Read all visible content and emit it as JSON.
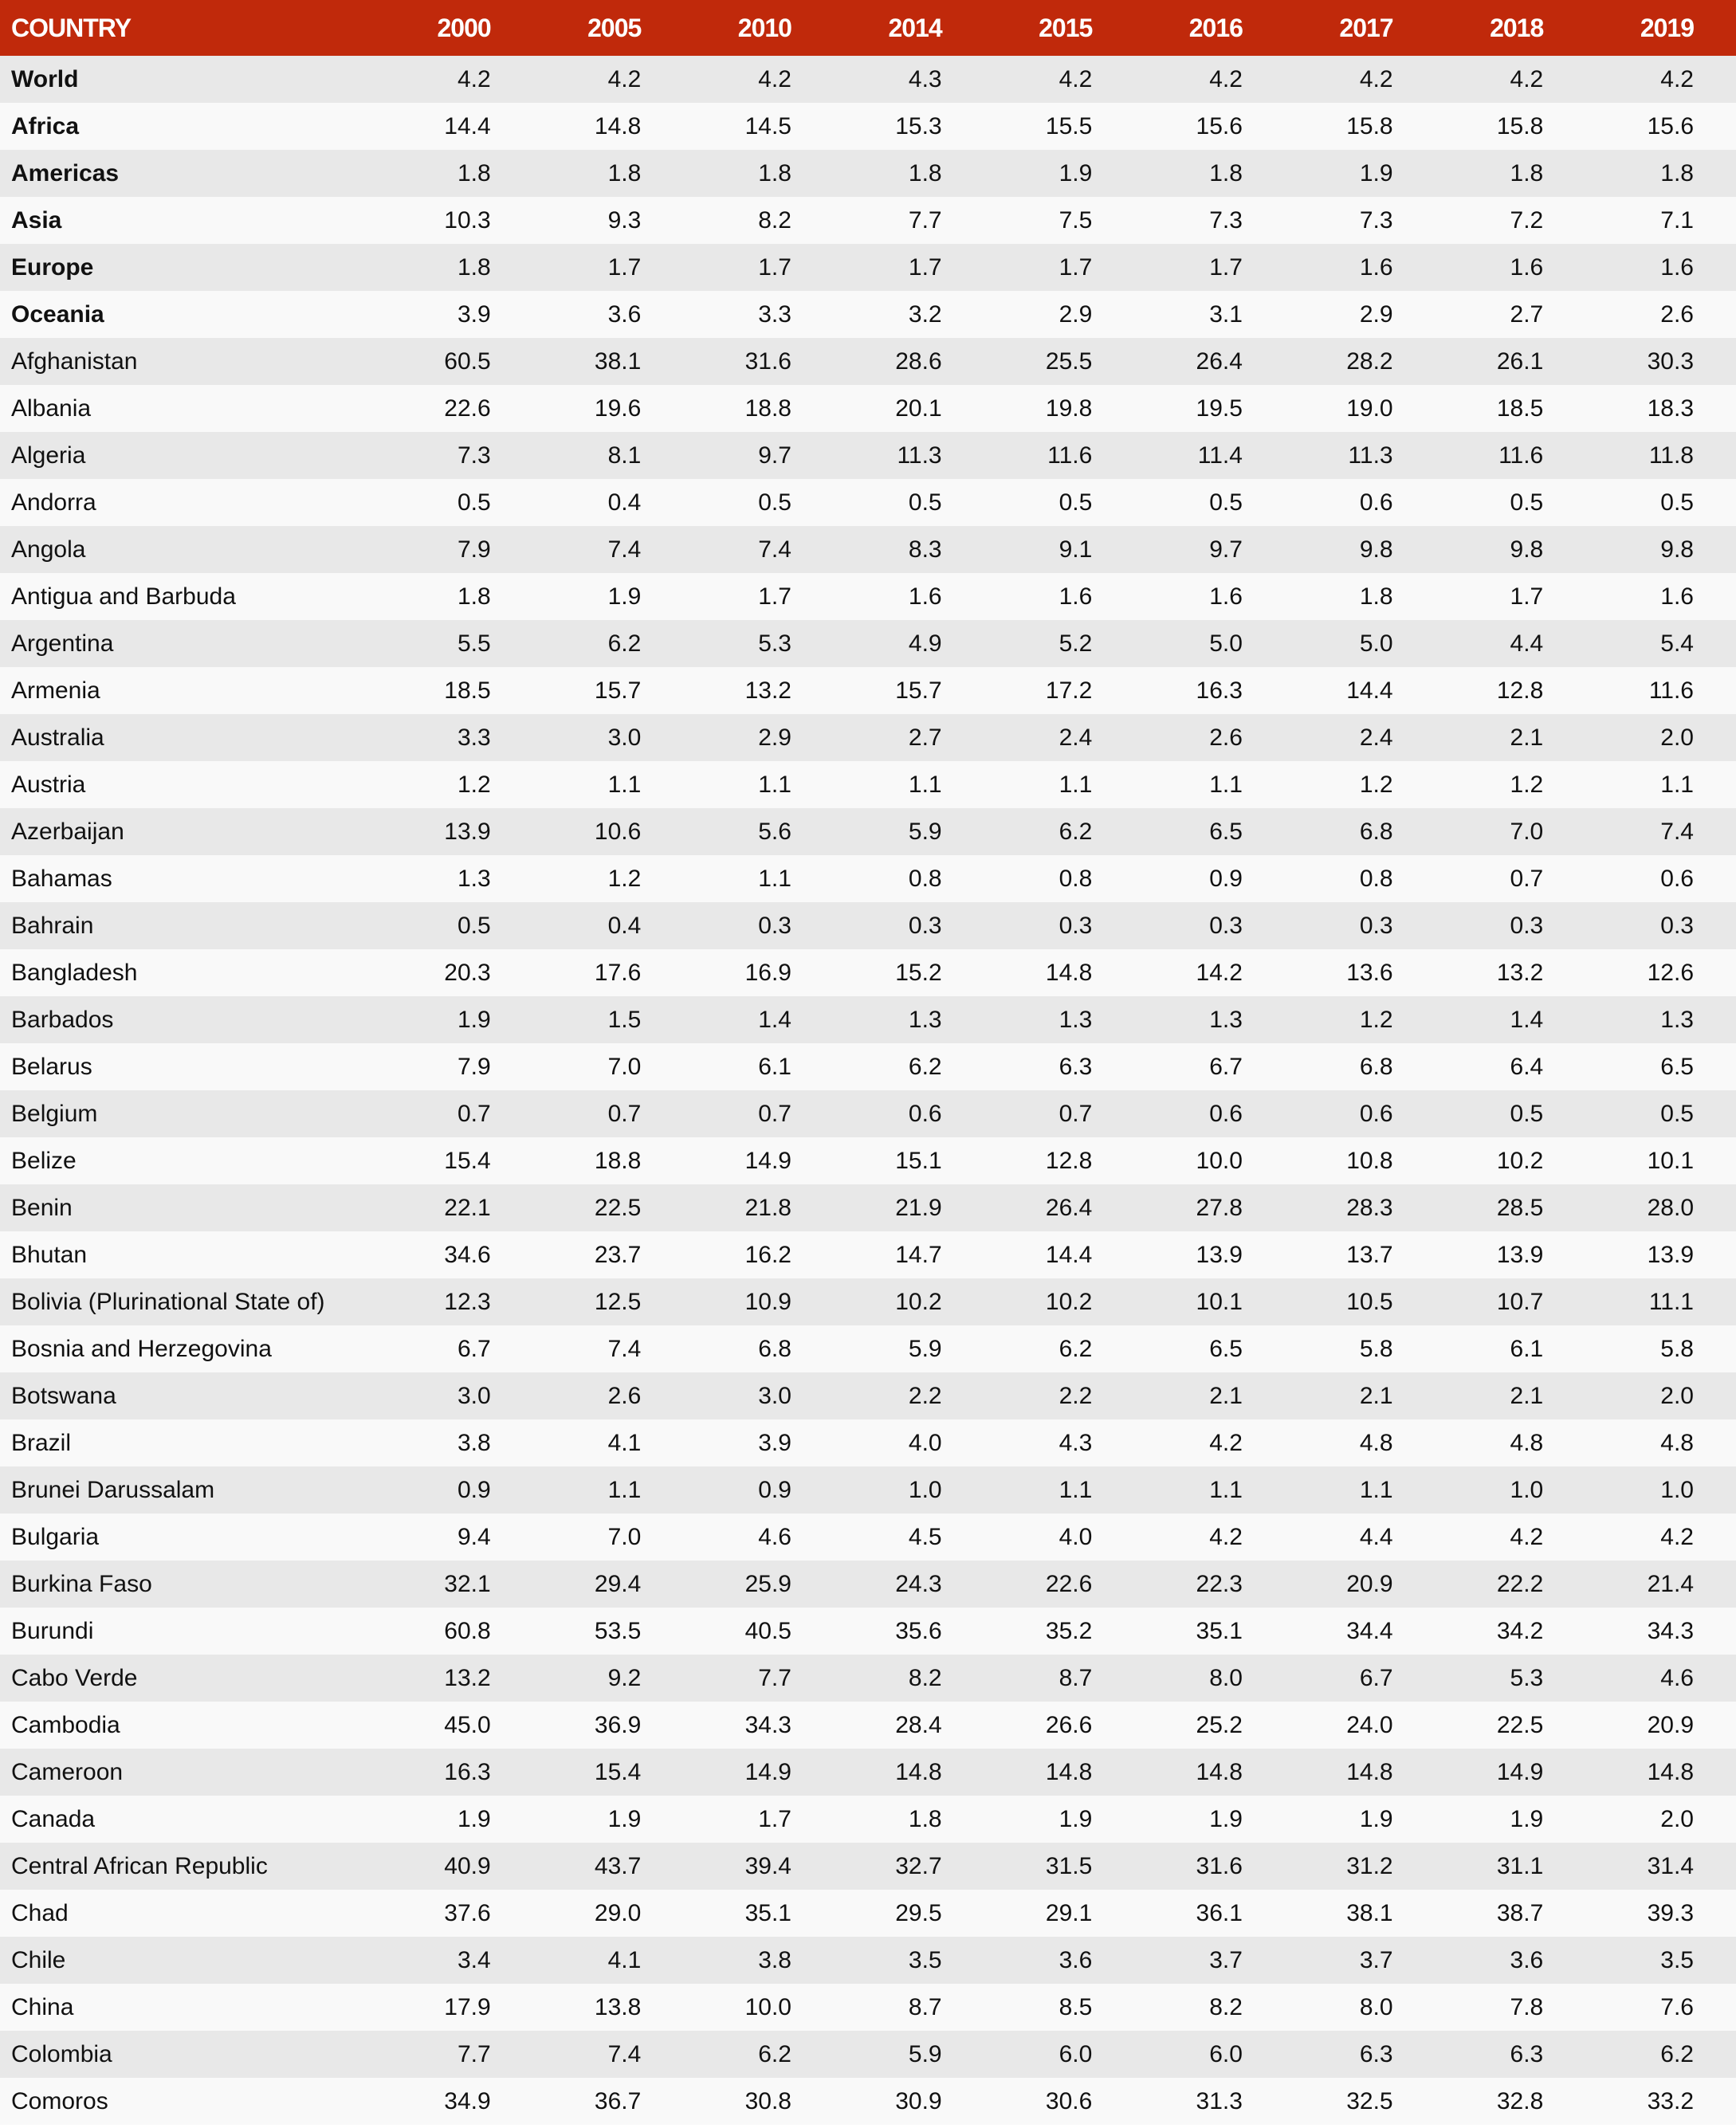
{
  "table": {
    "header": [
      "COUNTRY",
      "2000",
      "2005",
      "2010",
      "2014",
      "2015",
      "2016",
      "2017",
      "2018",
      "2019"
    ],
    "rows": [
      {
        "name": "World",
        "bold": true,
        "values": [
          "4.2",
          "4.2",
          "4.2",
          "4.3",
          "4.2",
          "4.2",
          "4.2",
          "4.2",
          "4.2"
        ]
      },
      {
        "name": "Africa",
        "bold": true,
        "values": [
          "14.4",
          "14.8",
          "14.5",
          "15.3",
          "15.5",
          "15.6",
          "15.8",
          "15.8",
          "15.6"
        ]
      },
      {
        "name": "Americas",
        "bold": true,
        "values": [
          "1.8",
          "1.8",
          "1.8",
          "1.8",
          "1.9",
          "1.8",
          "1.9",
          "1.8",
          "1.8"
        ]
      },
      {
        "name": "Asia",
        "bold": true,
        "values": [
          "10.3",
          "9.3",
          "8.2",
          "7.7",
          "7.5",
          "7.3",
          "7.3",
          "7.2",
          "7.1"
        ]
      },
      {
        "name": "Europe",
        "bold": true,
        "values": [
          "1.8",
          "1.7",
          "1.7",
          "1.7",
          "1.7",
          "1.7",
          "1.6",
          "1.6",
          "1.6"
        ]
      },
      {
        "name": "Oceania",
        "bold": true,
        "values": [
          "3.9",
          "3.6",
          "3.3",
          "3.2",
          "2.9",
          "3.1",
          "2.9",
          "2.7",
          "2.6"
        ]
      },
      {
        "name": "Afghanistan",
        "values": [
          "60.5",
          "38.1",
          "31.6",
          "28.6",
          "25.5",
          "26.4",
          "28.2",
          "26.1",
          "30.3"
        ]
      },
      {
        "name": "Albania",
        "values": [
          "22.6",
          "19.6",
          "18.8",
          "20.1",
          "19.8",
          "19.5",
          "19.0",
          "18.5",
          "18.3"
        ]
      },
      {
        "name": "Algeria",
        "values": [
          "7.3",
          "8.1",
          "9.7",
          "11.3",
          "11.6",
          "11.4",
          "11.3",
          "11.6",
          "11.8"
        ]
      },
      {
        "name": "Andorra",
        "values": [
          "0.5",
          "0.4",
          "0.5",
          "0.5",
          "0.5",
          "0.5",
          "0.6",
          "0.5",
          "0.5"
        ]
      },
      {
        "name": "Angola",
        "values": [
          "7.9",
          "7.4",
          "7.4",
          "8.3",
          "9.1",
          "9.7",
          "9.8",
          "9.8",
          "9.8"
        ]
      },
      {
        "name": "Antigua and Barbuda",
        "values": [
          "1.8",
          "1.9",
          "1.7",
          "1.6",
          "1.6",
          "1.6",
          "1.8",
          "1.7",
          "1.6"
        ]
      },
      {
        "name": "Argentina",
        "values": [
          "5.5",
          "6.2",
          "5.3",
          "4.9",
          "5.2",
          "5.0",
          "5.0",
          "4.4",
          "5.4"
        ]
      },
      {
        "name": "Armenia",
        "values": [
          "18.5",
          "15.7",
          "13.2",
          "15.7",
          "17.2",
          "16.3",
          "14.4",
          "12.8",
          "11.6"
        ]
      },
      {
        "name": "Australia",
        "values": [
          "3.3",
          "3.0",
          "2.9",
          "2.7",
          "2.4",
          "2.6",
          "2.4",
          "2.1",
          "2.0"
        ]
      },
      {
        "name": "Austria",
        "values": [
          "1.2",
          "1.1",
          "1.1",
          "1.1",
          "1.1",
          "1.1",
          "1.2",
          "1.2",
          "1.1"
        ]
      },
      {
        "name": "Azerbaijan",
        "values": [
          "13.9",
          "10.6",
          "5.6",
          "5.9",
          "6.2",
          "6.5",
          "6.8",
          "7.0",
          "7.4"
        ]
      },
      {
        "name": "Bahamas",
        "values": [
          "1.3",
          "1.2",
          "1.1",
          "0.8",
          "0.8",
          "0.9",
          "0.8",
          "0.7",
          "0.6"
        ]
      },
      {
        "name": "Bahrain",
        "values": [
          "0.5",
          "0.4",
          "0.3",
          "0.3",
          "0.3",
          "0.3",
          "0.3",
          "0.3",
          "0.3"
        ]
      },
      {
        "name": "Bangladesh",
        "values": [
          "20.3",
          "17.6",
          "16.9",
          "15.2",
          "14.8",
          "14.2",
          "13.6",
          "13.2",
          "12.6"
        ]
      },
      {
        "name": "Barbados",
        "values": [
          "1.9",
          "1.5",
          "1.4",
          "1.3",
          "1.3",
          "1.3",
          "1.2",
          "1.4",
          "1.3"
        ]
      },
      {
        "name": "Belarus",
        "values": [
          "7.9",
          "7.0",
          "6.1",
          "6.2",
          "6.3",
          "6.7",
          "6.8",
          "6.4",
          "6.5"
        ]
      },
      {
        "name": "Belgium",
        "values": [
          "0.7",
          "0.7",
          "0.7",
          "0.6",
          "0.7",
          "0.6",
          "0.6",
          "0.5",
          "0.5"
        ]
      },
      {
        "name": "Belize",
        "values": [
          "15.4",
          "18.8",
          "14.9",
          "15.1",
          "12.8",
          "10.0",
          "10.8",
          "10.2",
          "10.1"
        ]
      },
      {
        "name": "Benin",
        "values": [
          "22.1",
          "22.5",
          "21.8",
          "21.9",
          "26.4",
          "27.8",
          "28.3",
          "28.5",
          "28.0"
        ]
      },
      {
        "name": "Bhutan",
        "values": [
          "34.6",
          "23.7",
          "16.2",
          "14.7",
          "14.4",
          "13.9",
          "13.7",
          "13.9",
          "13.9"
        ]
      },
      {
        "name": "Bolivia (Plurinational State of)",
        "values": [
          "12.3",
          "12.5",
          "10.9",
          "10.2",
          "10.2",
          "10.1",
          "10.5",
          "10.7",
          "11.1"
        ]
      },
      {
        "name": "Bosnia and Herzegovina",
        "values": [
          "6.7",
          "7.4",
          "6.8",
          "5.9",
          "6.2",
          "6.5",
          "5.8",
          "6.1",
          "5.8"
        ]
      },
      {
        "name": "Botswana",
        "values": [
          "3.0",
          "2.6",
          "3.0",
          "2.2",
          "2.2",
          "2.1",
          "2.1",
          "2.1",
          "2.0"
        ]
      },
      {
        "name": "Brazil",
        "values": [
          "3.8",
          "4.1",
          "3.9",
          "4.0",
          "4.3",
          "4.2",
          "4.8",
          "4.8",
          "4.8"
        ]
      },
      {
        "name": "Brunei Darussalam",
        "values": [
          "0.9",
          "1.1",
          "0.9",
          "1.0",
          "1.1",
          "1.1",
          "1.1",
          "1.0",
          "1.0"
        ]
      },
      {
        "name": "Bulgaria",
        "values": [
          "9.4",
          "7.0",
          "4.6",
          "4.5",
          "4.0",
          "4.2",
          "4.4",
          "4.2",
          "4.2"
        ]
      },
      {
        "name": "Burkina Faso",
        "values": [
          "32.1",
          "29.4",
          "25.9",
          "24.3",
          "22.6",
          "22.3",
          "20.9",
          "22.2",
          "21.4"
        ]
      },
      {
        "name": "Burundi",
        "values": [
          "60.8",
          "53.5",
          "40.5",
          "35.6",
          "35.2",
          "35.1",
          "34.4",
          "34.2",
          "34.3"
        ]
      },
      {
        "name": "Cabo Verde",
        "values": [
          "13.2",
          "9.2",
          "7.7",
          "8.2",
          "8.7",
          "8.0",
          "6.7",
          "5.3",
          "4.6"
        ]
      },
      {
        "name": "Cambodia",
        "values": [
          "45.0",
          "36.9",
          "34.3",
          "28.4",
          "26.6",
          "25.2",
          "24.0",
          "22.5",
          "20.9"
        ]
      },
      {
        "name": "Cameroon",
        "values": [
          "16.3",
          "15.4",
          "14.9",
          "14.8",
          "14.8",
          "14.8",
          "14.8",
          "14.9",
          "14.8"
        ]
      },
      {
        "name": "Canada",
        "values": [
          "1.9",
          "1.9",
          "1.7",
          "1.8",
          "1.9",
          "1.9",
          "1.9",
          "1.9",
          "2.0"
        ]
      },
      {
        "name": "Central African Republic",
        "values": [
          "40.9",
          "43.7",
          "39.4",
          "32.7",
          "31.5",
          "31.6",
          "31.2",
          "31.1",
          "31.4"
        ]
      },
      {
        "name": "Chad",
        "values": [
          "37.6",
          "29.0",
          "35.1",
          "29.5",
          "29.1",
          "36.1",
          "38.1",
          "38.7",
          "39.3"
        ]
      },
      {
        "name": "Chile",
        "values": [
          "3.4",
          "4.1",
          "3.8",
          "3.5",
          "3.6",
          "3.7",
          "3.7",
          "3.6",
          "3.5"
        ]
      },
      {
        "name": "China",
        "values": [
          "17.9",
          "13.8",
          "10.0",
          "8.7",
          "8.5",
          "8.2",
          "8.0",
          "7.8",
          "7.6"
        ]
      },
      {
        "name": "Colombia",
        "values": [
          "7.7",
          "7.4",
          "6.2",
          "5.9",
          "6.0",
          "6.0",
          "6.3",
          "6.3",
          "6.2"
        ]
      },
      {
        "name": "Comoros",
        "values": [
          "34.9",
          "36.7",
          "30.8",
          "30.9",
          "30.6",
          "31.3",
          "32.5",
          "32.8",
          "33.2"
        ]
      }
    ]
  }
}
